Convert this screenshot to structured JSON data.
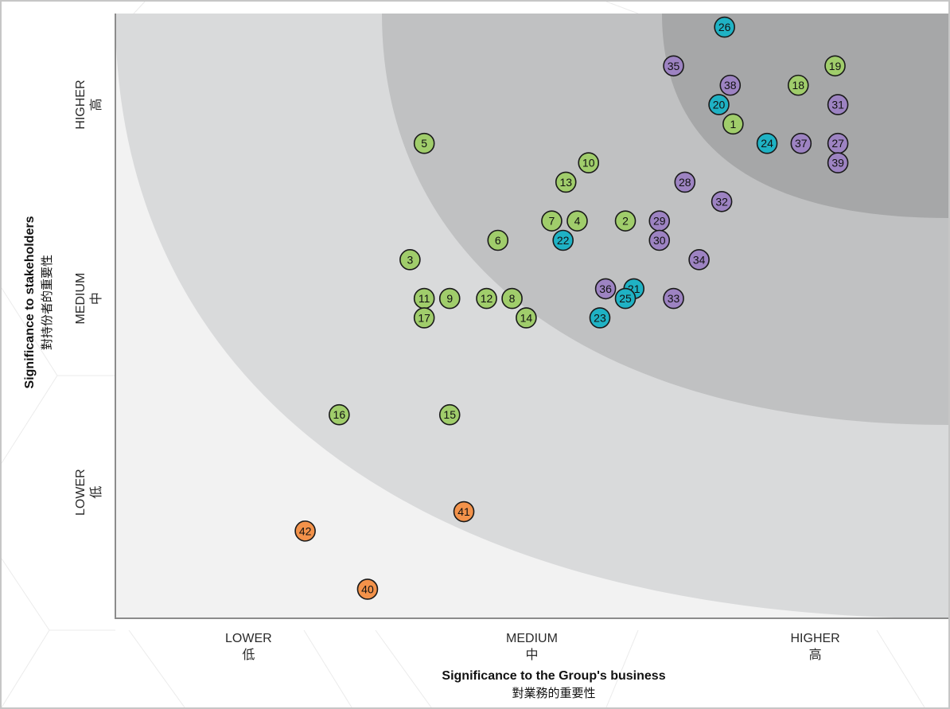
{
  "chart_data": {
    "type": "scatter",
    "title": "",
    "xlabel": "Significance to the Group's business",
    "xlabel_sub": "對業務的重要性",
    "ylabel": "Significance to stakeholders",
    "ylabel_sub": "對持份者的重要性",
    "x_ticks": [
      {
        "value": 1,
        "label": "LOWER",
        "sub": "低"
      },
      {
        "value": 2,
        "label": "MEDIUM",
        "sub": "中"
      },
      {
        "value": 3,
        "label": "HIGHER",
        "sub": "高"
      }
    ],
    "y_ticks": [
      {
        "value": 1,
        "label": "LOWER",
        "sub": "低"
      },
      {
        "value": 2,
        "label": "MEDIUM",
        "sub": "中"
      },
      {
        "value": 3,
        "label": "HIGHER",
        "sub": "高"
      }
    ],
    "xlim": [
      0.53,
      3.47
    ],
    "ylim": [
      0.35,
      3.47
    ],
    "grid": false,
    "legend": "none",
    "zone_colors": [
      "#f2f2f2",
      "#d9dadb",
      "#c0c1c2",
      "#a6a7a8"
    ],
    "group_colors": {
      "green": "#a0cd6b",
      "teal": "#1fb2c4",
      "purple": "#9d83c2",
      "orange": "#f3924a"
    },
    "points": [
      {
        "id": "1",
        "group": "green",
        "x": 2.71,
        "y": 2.9
      },
      {
        "id": "2",
        "group": "green",
        "x": 2.33,
        "y": 2.4
      },
      {
        "id": "3",
        "group": "green",
        "x": 1.57,
        "y": 2.2
      },
      {
        "id": "4",
        "group": "green",
        "x": 2.16,
        "y": 2.4
      },
      {
        "id": "5",
        "group": "green",
        "x": 1.62,
        "y": 2.8
      },
      {
        "id": "6",
        "group": "green",
        "x": 1.88,
        "y": 2.3
      },
      {
        "id": "7",
        "group": "green",
        "x": 2.07,
        "y": 2.4
      },
      {
        "id": "8",
        "group": "green",
        "x": 1.93,
        "y": 2.0
      },
      {
        "id": "9",
        "group": "green",
        "x": 1.71,
        "y": 2.0
      },
      {
        "id": "10",
        "group": "green",
        "x": 2.2,
        "y": 2.7
      },
      {
        "id": "11",
        "group": "green",
        "x": 1.62,
        "y": 2.0
      },
      {
        "id": "12",
        "group": "green",
        "x": 1.84,
        "y": 2.0
      },
      {
        "id": "13",
        "group": "green",
        "x": 2.12,
        "y": 2.6
      },
      {
        "id": "14",
        "group": "green",
        "x": 1.98,
        "y": 1.9
      },
      {
        "id": "15",
        "group": "green",
        "x": 1.71,
        "y": 1.4
      },
      {
        "id": "16",
        "group": "green",
        "x": 1.32,
        "y": 1.4
      },
      {
        "id": "17",
        "group": "green",
        "x": 1.62,
        "y": 1.9
      },
      {
        "id": "18",
        "group": "green",
        "x": 2.94,
        "y": 3.1
      },
      {
        "id": "19",
        "group": "green",
        "x": 3.07,
        "y": 3.2
      },
      {
        "id": "20",
        "group": "teal",
        "x": 2.66,
        "y": 3.0
      },
      {
        "id": "21",
        "group": "teal",
        "x": 2.36,
        "y": 2.05
      },
      {
        "id": "22",
        "group": "teal",
        "x": 2.11,
        "y": 2.3
      },
      {
        "id": "23",
        "group": "teal",
        "x": 2.24,
        "y": 1.9
      },
      {
        "id": "24",
        "group": "teal",
        "x": 2.83,
        "y": 2.8
      },
      {
        "id": "25",
        "group": "teal",
        "x": 2.33,
        "y": 2.0
      },
      {
        "id": "26",
        "group": "teal",
        "x": 2.68,
        "y": 3.4
      },
      {
        "id": "27",
        "group": "purple",
        "x": 3.08,
        "y": 2.8
      },
      {
        "id": "28",
        "group": "purple",
        "x": 2.54,
        "y": 2.6
      },
      {
        "id": "29",
        "group": "purple",
        "x": 2.45,
        "y": 2.4
      },
      {
        "id": "30",
        "group": "purple",
        "x": 2.45,
        "y": 2.3
      },
      {
        "id": "31",
        "group": "purple",
        "x": 3.08,
        "y": 3.0
      },
      {
        "id": "32",
        "group": "purple",
        "x": 2.67,
        "y": 2.5
      },
      {
        "id": "33",
        "group": "purple",
        "x": 2.5,
        "y": 2.0
      },
      {
        "id": "34",
        "group": "purple",
        "x": 2.59,
        "y": 2.2
      },
      {
        "id": "35",
        "group": "purple",
        "x": 2.5,
        "y": 3.2
      },
      {
        "id": "36",
        "group": "purple",
        "x": 2.26,
        "y": 2.05
      },
      {
        "id": "37",
        "group": "purple",
        "x": 2.95,
        "y": 2.8
      },
      {
        "id": "38",
        "group": "purple",
        "x": 2.7,
        "y": 3.1
      },
      {
        "id": "39",
        "group": "purple",
        "x": 3.08,
        "y": 2.7
      },
      {
        "id": "40",
        "group": "orange",
        "x": 1.42,
        "y": 0.5
      },
      {
        "id": "41",
        "group": "orange",
        "x": 1.76,
        "y": 0.9
      },
      {
        "id": "42",
        "group": "orange",
        "x": 1.2,
        "y": 0.8
      }
    ]
  }
}
